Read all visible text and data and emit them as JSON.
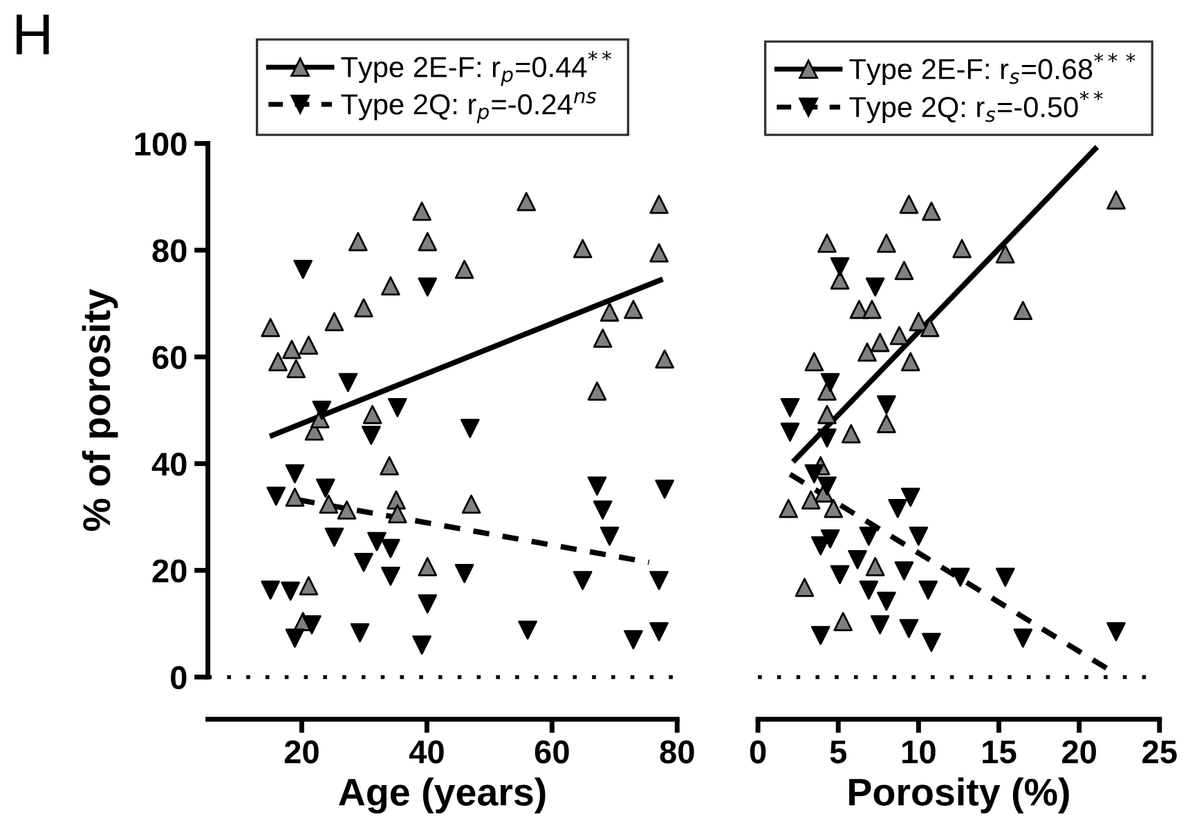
{
  "chart_data": [
    {
      "type": "scatter",
      "xlabel": "Age (years)",
      "ylabel": "% of porosity",
      "annotations": [
        "H"
      ],
      "xlim": [
        5,
        80
      ],
      "xticks": [
        20,
        40,
        60,
        80
      ],
      "ylim": [
        0,
        100
      ],
      "yticks": [
        0,
        20,
        40,
        60,
        80,
        100
      ],
      "legend": "top",
      "grid": false,
      "ref_lines": [
        {
          "axis": "y",
          "value": 0,
          "line_style": "dotted",
          "color": "#000000"
        }
      ],
      "series": [
        {
          "name": "Type 2E-F: r$_{p}$=0.44$^{**}$",
          "marker": "triangle",
          "color": "#808080",
          "x": [
            15.0,
            16.2,
            18.4,
            19.1,
            21.1,
            25.2,
            29.9,
            29.0,
            34.2,
            39.2,
            40.1,
            46.0,
            55.9,
            64.9,
            69.2,
            73.0,
            68.1,
            67.2,
            77.1,
            77.1,
            78.0,
            22.0,
            22.9,
            31.3,
            34.0,
            18.9,
            24.3,
            27.2,
            35.1,
            35.3,
            47.1,
            40.1,
            21.1,
            20.2
          ],
          "values": [
            65.5,
            59.1,
            61.4,
            57.8,
            62.2,
            66.6,
            69.2,
            81.6,
            73.3,
            87.3,
            81.6,
            76.4,
            89.1,
            80.3,
            68.4,
            68.9,
            63.5,
            53.6,
            88.6,
            79.5,
            59.6,
            46.1,
            48.4,
            49.2,
            39.6,
            33.7,
            32.4,
            31.3,
            33.2,
            30.6,
            32.4,
            20.7,
            17.1,
            10.4
          ]
        },
        {
          "name": "Type 2Q: r$_{p}$=-0.24$^{ns}$",
          "marker": "triangle_down",
          "color": "#000000",
          "x": [
            20.2,
            40.1,
            27.4,
            35.3,
            23.2,
            46.9,
            31.1,
            18.9,
            15.9,
            23.8,
            25.2,
            32.0,
            34.2,
            29.9,
            34.2,
            46.0,
            15.0,
            18.2,
            21.6,
            18.9,
            29.3,
            40.1,
            39.2,
            56.1,
            67.2,
            68.1,
            69.2,
            78.0,
            64.9,
            77.1,
            73.0,
            77.1
          ],
          "values": [
            76.4,
            73.1,
            55.2,
            50.5,
            50.0,
            46.6,
            45.3,
            38.1,
            33.9,
            35.4,
            26.2,
            25.4,
            24.1,
            21.5,
            18.9,
            19.4,
            16.3,
            16.1,
            9.8,
            7.3,
            8.3,
            13.7,
            6.0,
            8.8,
            35.8,
            31.3,
            26.4,
            35.2,
            18.1,
            18.1,
            7.0,
            8.5
          ]
        },
        {
          "type": "line",
          "line_style": "solid",
          "color": "#000000",
          "x": [
            15.3,
            77.3
          ],
          "values": [
            45.3,
            74.4
          ]
        },
        {
          "type": "line",
          "line_style": "dashed",
          "color": "#000000",
          "x": [
            19.5,
            75.5
          ],
          "values": [
            33.2,
            21.5
          ]
        }
      ]
    },
    {
      "type": "scatter",
      "xlabel": "Porosity (%)",
      "xlim": [
        0,
        25
      ],
      "xticks": [
        0,
        5,
        10,
        15,
        20,
        25
      ],
      "ylim": [
        0,
        100
      ],
      "tick_labels": "x",
      "legend": "top",
      "grid": false,
      "ref_lines": [
        {
          "axis": "y",
          "value": 0,
          "line_style": "dotted",
          "color": "#000000"
        }
      ],
      "series": [
        {
          "name": "Type 2E-F: r$_{s}$=0.68$^{***}$",
          "marker": "triangle",
          "color": "#808080",
          "x": [
            9.4,
            10.8,
            22.3,
            4.3,
            8.0,
            12.7,
            15.4,
            9.1,
            5.1,
            6.3,
            7.1,
            16.5,
            10.0,
            10.7,
            8.8,
            7.6,
            6.8,
            9.5,
            3.5,
            4.3,
            4.3,
            8.0,
            5.8,
            3.9,
            4.1,
            1.9,
            3.3,
            4.7,
            7.3,
            2.9,
            5.3
          ],
          "values": [
            88.6,
            87.3,
            89.4,
            81.3,
            81.3,
            80.3,
            79.3,
            76.2,
            74.4,
            68.9,
            68.9,
            68.7,
            66.6,
            65.5,
            64.0,
            62.7,
            60.9,
            59.1,
            59.1,
            53.6,
            49.2,
            47.5,
            45.6,
            39.6,
            34.5,
            31.6,
            33.2,
            31.6,
            20.7,
            16.8,
            10.4
          ]
        },
        {
          "name": "Type 2Q: r$_{s}$=-0.50$^{**}$",
          "marker": "triangle_down",
          "color": "#000000",
          "x": [
            5.1,
            7.3,
            4.5,
            2.0,
            8.0,
            2.0,
            4.3,
            3.5,
            4.3,
            9.5,
            8.7,
            10.0,
            4.5,
            3.9,
            6.9,
            6.2,
            5.1,
            9.1,
            12.6,
            15.4,
            6.9,
            10.6,
            8.0,
            7.6,
            3.9,
            9.4,
            10.8,
            16.5,
            22.3
          ],
          "values": [
            76.9,
            73.1,
            55.2,
            50.5,
            51.0,
            45.9,
            44.8,
            38.1,
            35.8,
            33.7,
            31.6,
            26.4,
            25.9,
            24.6,
            26.4,
            22.0,
            19.2,
            19.9,
            18.7,
            18.7,
            16.3,
            16.3,
            14.2,
            9.8,
            7.8,
            9.1,
            6.5,
            7.3,
            8.5
          ]
        },
        {
          "type": "line",
          "line_style": "solid",
          "color": "#000000",
          "x": [
            2.3,
            21.0
          ],
          "values": [
            40.7,
            99.0
          ]
        },
        {
          "type": "line",
          "line_style": "dashed",
          "color": "#000000",
          "x": [
            2.0,
            21.9
          ],
          "values": [
            38.0,
            1.3
          ]
        }
      ]
    }
  ]
}
